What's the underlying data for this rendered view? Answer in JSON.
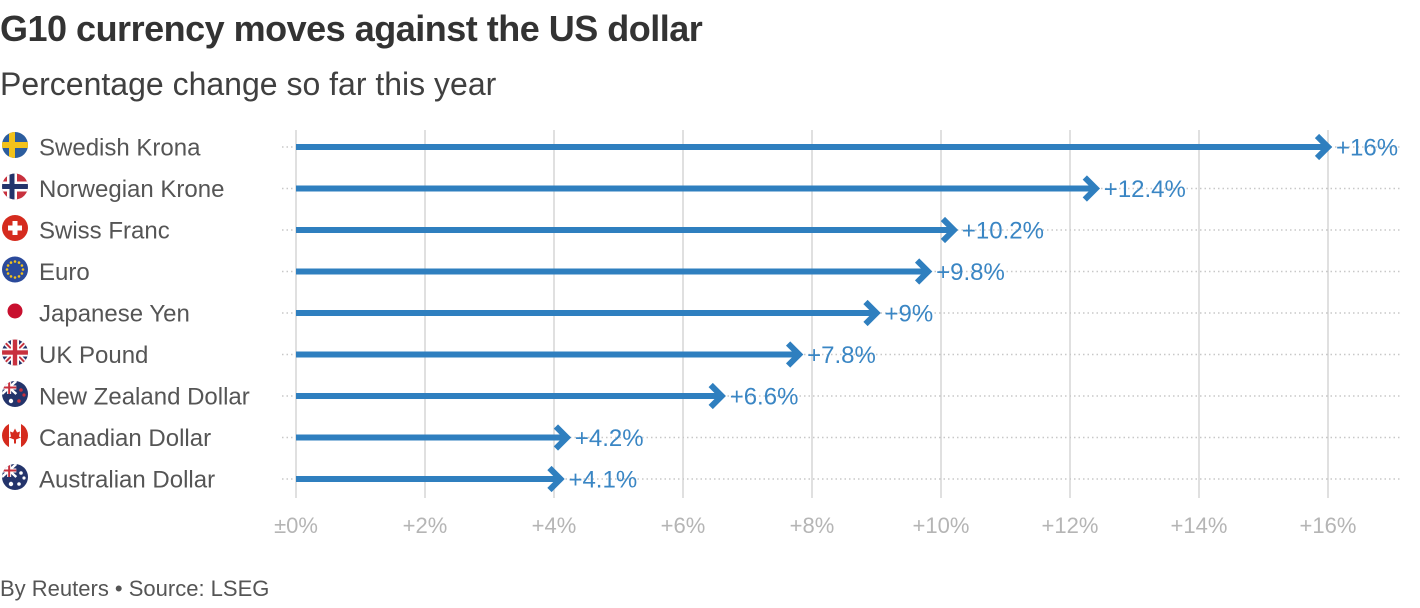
{
  "header": {
    "title": "G10 currency moves against the US dollar",
    "subtitle": "Percentage change so far this year"
  },
  "footer": {
    "credit": "By Reuters • Source: LSEG"
  },
  "colors": {
    "bar": "#2f7fbf",
    "value_text": "#3a86c4",
    "grid": "#cccccc"
  },
  "chart_data": {
    "type": "bar",
    "orientation": "horizontal",
    "title": "G10 currency moves against the US dollar",
    "subtitle": "Percentage change so far this year",
    "xlabel": "",
    "ylabel": "",
    "xlim": [
      0,
      16
    ],
    "x_ticks": [
      0,
      2,
      4,
      6,
      8,
      10,
      12,
      14,
      16
    ],
    "x_tick_labels": [
      "±0%",
      "+2%",
      "+4%",
      "+6%",
      "+8%",
      "+10%",
      "+12%",
      "+14%",
      "+16%"
    ],
    "grid": true,
    "categories": [
      "Swedish Krona",
      "Norwegian Krone",
      "Swiss Franc",
      "Euro",
      "Japanese Yen",
      "UK Pound",
      "New Zealand Dollar",
      "Canadian Dollar",
      "Australian Dollar"
    ],
    "flags": [
      "sweden-flag-icon",
      "norway-flag-icon",
      "switzerland-flag-icon",
      "eu-flag-icon",
      "japan-flag-icon",
      "uk-flag-icon",
      "new-zealand-flag-icon",
      "canada-flag-icon",
      "australia-flag-icon"
    ],
    "values": [
      16,
      12.4,
      10.2,
      9.8,
      9,
      7.8,
      6.6,
      4.2,
      4.1
    ],
    "value_labels": [
      "+16%",
      "+12.4%",
      "+10.2%",
      "+9.8%",
      "+9%",
      "+7.8%",
      "+6.6%",
      "+4.2%",
      "+4.1%"
    ]
  }
}
